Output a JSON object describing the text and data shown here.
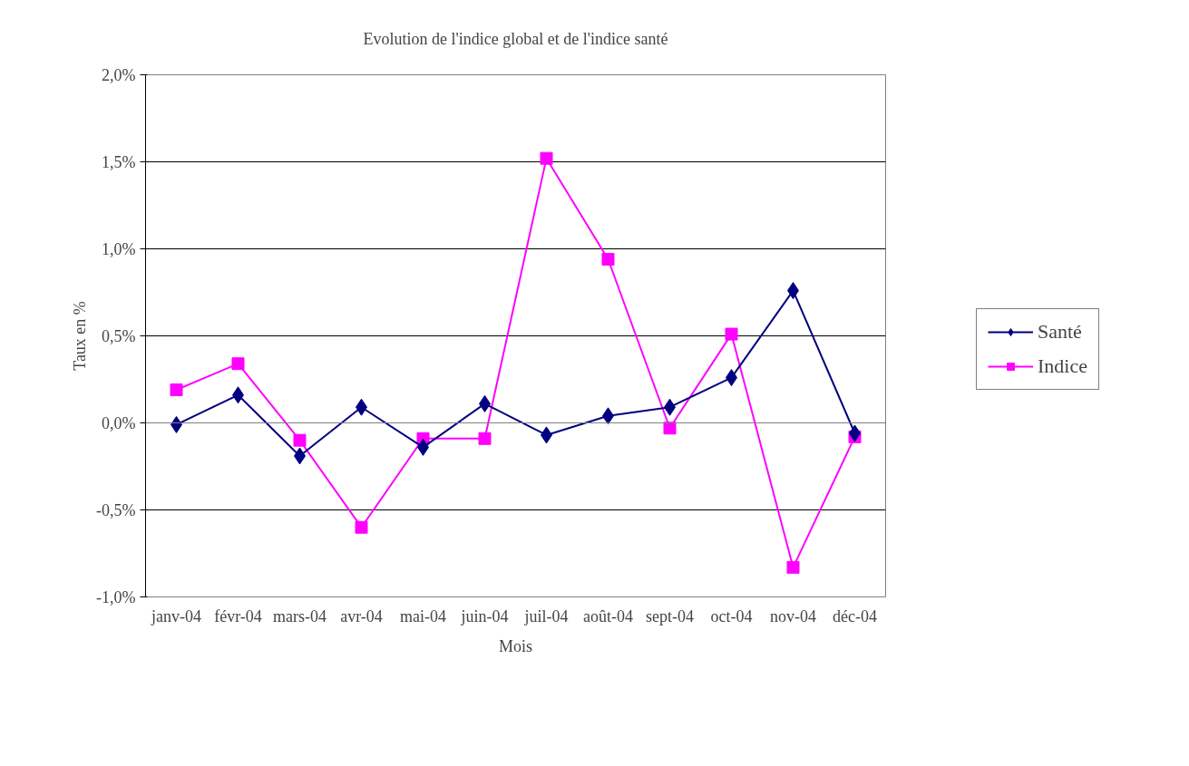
{
  "chart_data": {
    "type": "line",
    "title": "Evolution de l'indice global et de l'indice santé",
    "xlabel": "Mois",
    "ylabel": "Taux en %",
    "categories": [
      "janv-04",
      "févr-04",
      "mars-04",
      "avr-04",
      "mai-04",
      "juin-04",
      "juil-04",
      "août-04",
      "sept-04",
      "oct-04",
      "nov-04",
      "déc-04"
    ],
    "series": [
      {
        "name": "Santé",
        "color": "#000080",
        "marker": "diamond",
        "values": [
          -0.01,
          0.16,
          -0.19,
          0.09,
          -0.14,
          0.11,
          -0.07,
          0.04,
          0.09,
          0.26,
          0.76,
          -0.06
        ]
      },
      {
        "name": "Indice",
        "color": "#ff00ff",
        "marker": "square",
        "values": [
          0.19,
          0.34,
          -0.1,
          -0.6,
          -0.09,
          -0.09,
          1.52,
          0.94,
          -0.03,
          0.51,
          -0.83,
          -0.08
        ]
      }
    ],
    "ylim": [
      -1.0,
      2.0
    ],
    "yticks": [
      {
        "value": -1.0,
        "label": "-1,0%"
      },
      {
        "value": -0.5,
        "label": "-0,5%"
      },
      {
        "value": 0.0,
        "label": "0,0%"
      },
      {
        "value": 0.5,
        "label": "0,5%"
      },
      {
        "value": 1.0,
        "label": "1,0%"
      },
      {
        "value": 1.5,
        "label": "1,5%"
      },
      {
        "value": 2.0,
        "label": "2,0%"
      }
    ],
    "grid": "y",
    "legend": "right",
    "line_style": "solid"
  }
}
